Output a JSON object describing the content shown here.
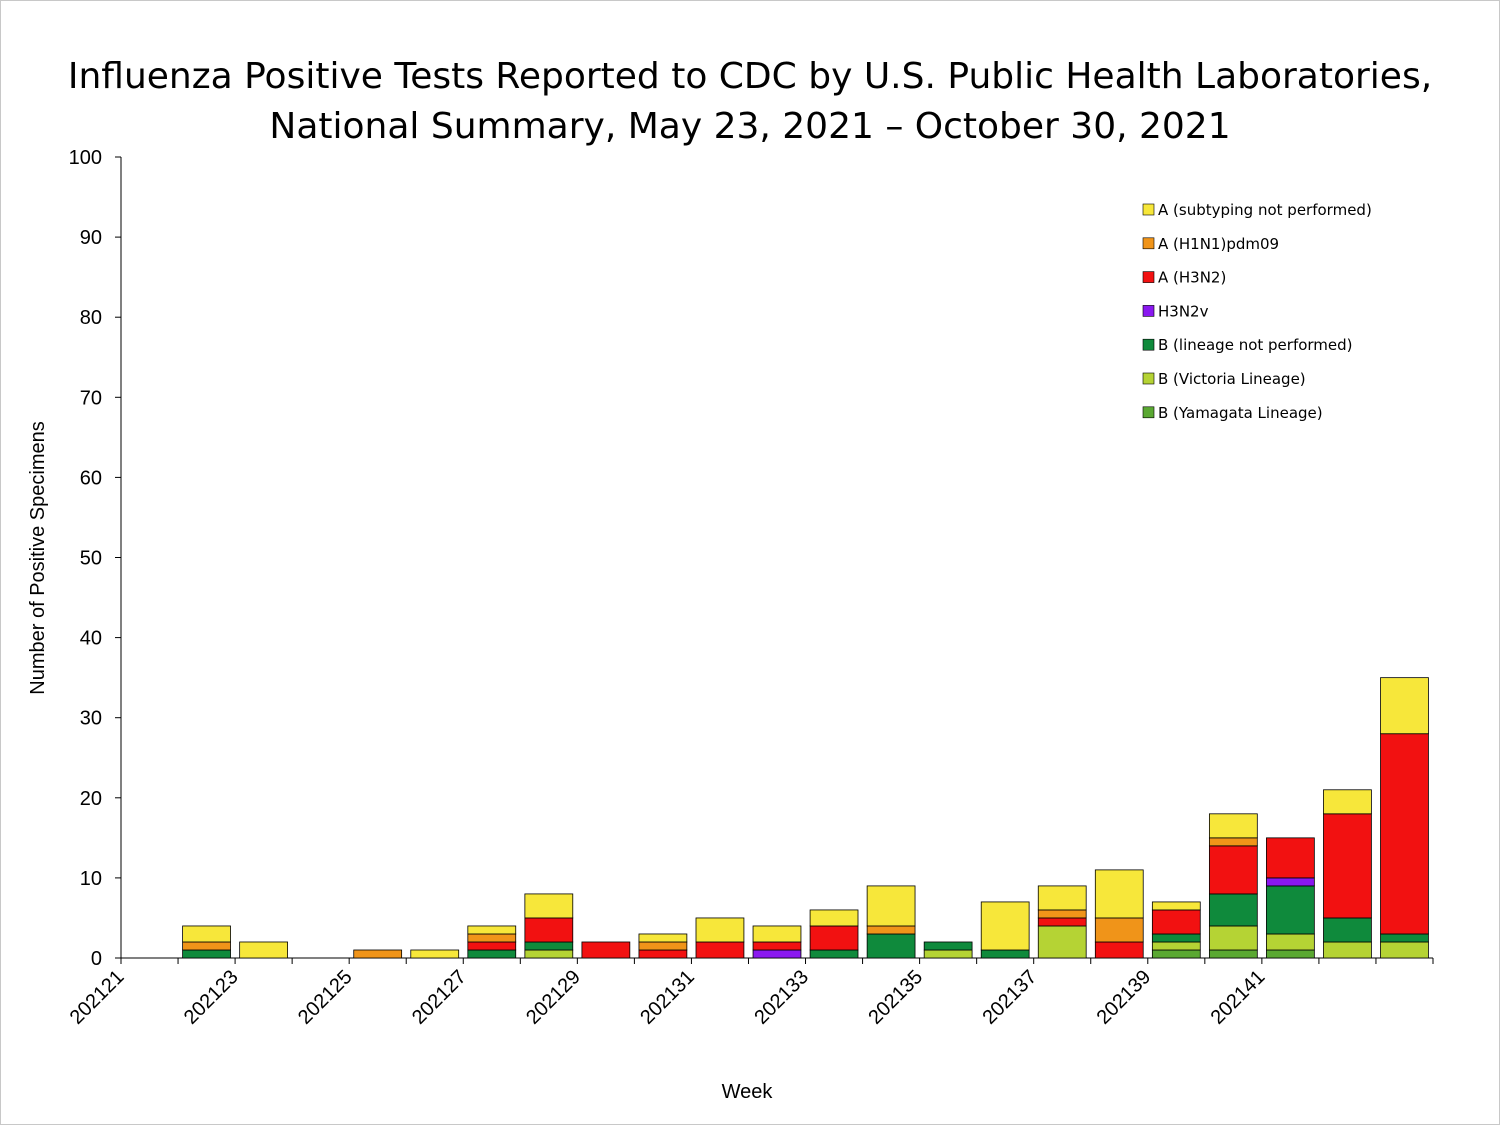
{
  "chart_data": {
    "type": "bar",
    "stacked": true,
    "title_line1": "Influenza Positive Tests Reported to CDC by U.S. Public Health Laboratories,",
    "title_line2": "National Summary, May 23, 2021 – October 30, 2021",
    "xlabel": "Week",
    "ylabel": "Number of Positive Specimens",
    "ylim": [
      0,
      100
    ],
    "yticks": [
      0,
      10,
      20,
      30,
      40,
      50,
      60,
      70,
      80,
      90,
      100
    ],
    "categories": [
      "202121",
      "202122",
      "202123",
      "202124",
      "202125",
      "202126",
      "202127",
      "202128",
      "202129",
      "202130",
      "202131",
      "202132",
      "202133",
      "202134",
      "202135",
      "202136",
      "202137",
      "202138",
      "202139",
      "202140",
      "202141",
      "202142",
      "202143"
    ],
    "xtick_labels": [
      "202121",
      "202123",
      "202125",
      "202127",
      "202129",
      "202131",
      "202133",
      "202135",
      "202137",
      "202139",
      "202141"
    ],
    "legend_position": "top-right",
    "series": [
      {
        "name": "B (Yamagata Lineage)",
        "color": "#5aa832",
        "values": [
          0,
          0,
          0,
          0,
          0,
          0,
          0,
          0,
          0,
          0,
          0,
          0,
          0,
          0,
          0,
          0,
          0,
          0,
          1,
          1,
          1,
          0,
          0
        ]
      },
      {
        "name": "B (Victoria Lineage)",
        "color": "#b5d334",
        "values": [
          0,
          0,
          0,
          0,
          0,
          0,
          0,
          1,
          0,
          0,
          0,
          0,
          0,
          0,
          1,
          0,
          4,
          0,
          1,
          3,
          2,
          2,
          2
        ]
      },
      {
        "name": "B (lineage not performed)",
        "color": "#0f8a3c",
        "values": [
          0,
          1,
          0,
          0,
          0,
          0,
          1,
          1,
          0,
          0,
          0,
          0,
          1,
          3,
          1,
          1,
          0,
          0,
          1,
          4,
          6,
          3,
          1
        ]
      },
      {
        "name": "H3N2v",
        "color": "#8a18f0",
        "values": [
          0,
          0,
          0,
          0,
          0,
          0,
          0,
          0,
          0,
          0,
          0,
          1,
          0,
          0,
          0,
          0,
          0,
          0,
          0,
          0,
          1,
          0,
          0
        ]
      },
      {
        "name": "A (H3N2)",
        "color": "#f21111",
        "values": [
          0,
          0,
          0,
          0,
          0,
          0,
          1,
          3,
          2,
          1,
          2,
          1,
          3,
          0,
          0,
          0,
          1,
          2,
          3,
          6,
          5,
          13,
          25
        ]
      },
      {
        "name": "A (H1N1)pdm09",
        "color": "#f09419",
        "values": [
          0,
          1,
          0,
          0,
          1,
          0,
          1,
          0,
          0,
          1,
          0,
          0,
          0,
          1,
          0,
          0,
          1,
          3,
          0,
          1,
          0,
          0,
          0
        ]
      },
      {
        "name": "A (subtyping not performed)",
        "color": "#f7e73a",
        "values": [
          0,
          2,
          2,
          0,
          0,
          1,
          1,
          3,
          0,
          1,
          3,
          2,
          2,
          5,
          0,
          6,
          3,
          6,
          1,
          3,
          0,
          3,
          7
        ]
      }
    ],
    "legend_order": [
      "A (subtyping not performed)",
      "A (H1N1)pdm09",
      "A (H3N2)",
      "H3N2v",
      "B (lineage not performed)",
      "B (Victoria Lineage)",
      "B (Yamagata Lineage)"
    ]
  }
}
